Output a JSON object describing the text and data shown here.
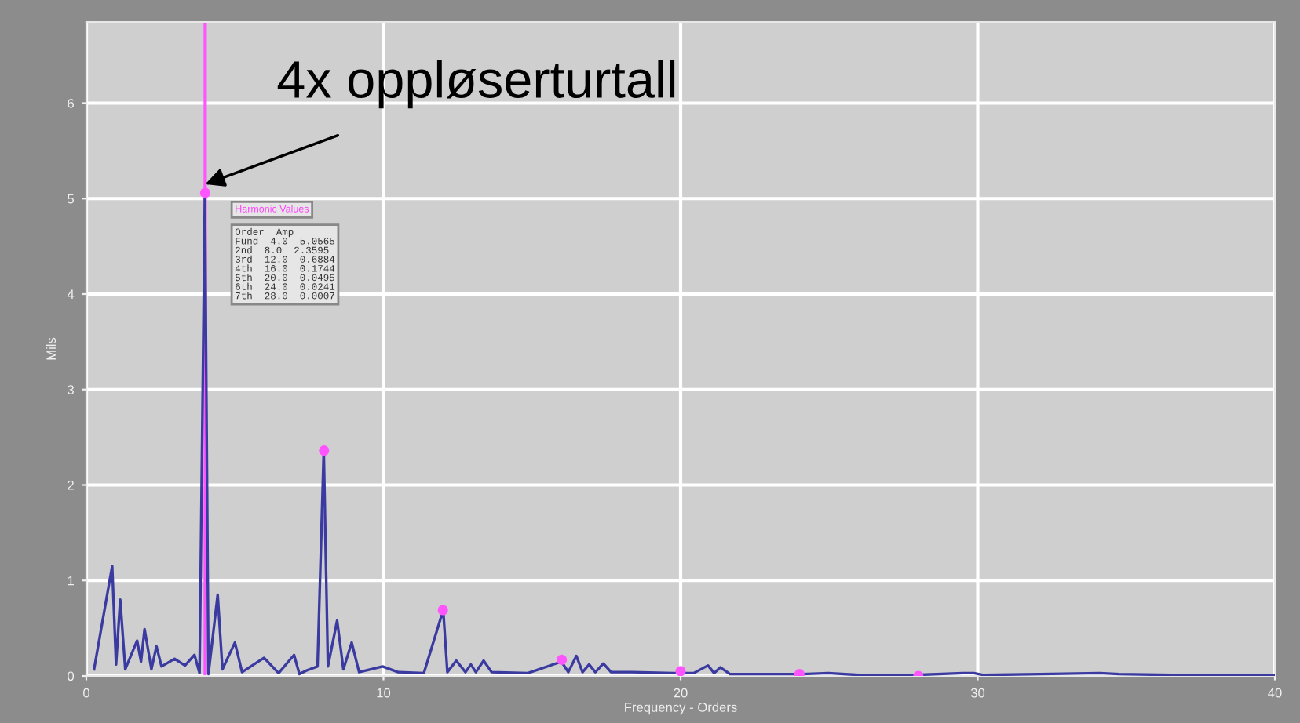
{
  "chart_data": {
    "type": "line",
    "xlabel": "Frequency - Orders",
    "ylabel": "Mils",
    "xlim": [
      0,
      40
    ],
    "xticks": [
      0,
      10,
      20,
      30,
      40
    ],
    "ylim": [
      0,
      6.85
    ],
    "yticks": [
      0,
      1,
      2,
      3,
      4,
      5,
      6
    ],
    "grid": true,
    "legend": false,
    "series": [
      {
        "color": "#3a3aa0",
        "x": [
          0.26,
          0.87,
          1.0,
          1.14,
          1.31,
          1.71,
          1.84,
          1.96,
          2.19,
          2.36,
          2.53,
          2.97,
          3.32,
          3.64,
          3.81,
          3.99,
          4.11,
          4.42,
          4.58,
          5.0,
          5.24,
          5.98,
          6.47,
          6.99,
          7.17,
          7.43,
          7.78,
          7.99,
          8.13,
          8.44,
          8.65,
          8.93,
          9.18,
          9.97,
          10.49,
          11.36,
          12.01,
          12.15,
          12.45,
          12.76,
          12.94,
          13.11,
          13.37,
          13.64,
          14.86,
          15.99,
          16.22,
          16.49,
          16.7,
          16.92,
          17.13,
          17.4,
          17.66,
          18.36,
          19.76,
          20.44,
          20.92,
          21.13,
          21.34,
          21.66,
          22.5,
          24.1,
          24.97,
          26.0,
          27.9,
          29.5,
          29.87,
          30.2,
          32.1,
          34.1,
          34.76,
          36.5,
          40.0
        ],
        "values": [
          0.07,
          1.15,
          0.12,
          0.8,
          0.07,
          0.37,
          0.15,
          0.49,
          0.07,
          0.31,
          0.1,
          0.18,
          0.11,
          0.22,
          0.03,
          5.06,
          0.02,
          0.85,
          0.07,
          0.35,
          0.04,
          0.19,
          0.03,
          0.22,
          0.02,
          0.06,
          0.1,
          2.36,
          0.1,
          0.58,
          0.07,
          0.35,
          0.04,
          0.1,
          0.04,
          0.03,
          0.69,
          0.04,
          0.16,
          0.04,
          0.12,
          0.04,
          0.16,
          0.04,
          0.03,
          0.15,
          0.04,
          0.21,
          0.04,
          0.12,
          0.04,
          0.13,
          0.04,
          0.04,
          0.03,
          0.03,
          0.11,
          0.03,
          0.09,
          0.02,
          0.02,
          0.02,
          0.03,
          0.01,
          0.01,
          0.03,
          0.03,
          0.01,
          0.02,
          0.03,
          0.02,
          0.01,
          0.01
        ]
      },
      {
        "type": "scatter",
        "color": "#ff55ff",
        "marker": "circle",
        "x": [
          4,
          8,
          12,
          16,
          20,
          24,
          28
        ],
        "values": [
          5.06,
          2.36,
          0.69,
          0.17,
          0.05,
          0.02,
          0.0
        ]
      }
    ],
    "ref_lines": [
      {
        "axis": "x",
        "value": 4,
        "color": "#ff55ff",
        "line_style": "solid"
      }
    ],
    "annotations": [
      {
        "text": "4x oppløserturtall",
        "x": 4,
        "y": 5.15
      },
      "Harmonic Values",
      "Order  Amp",
      "Fund  4.0  5.0565",
      "2nd  8.0  2.3595",
      "3rd  12.0  0.6884",
      "4th  16.0  0.1744",
      "5th  20.0  0.0495",
      "6th  24.0  0.0241",
      "7th  28.0  0.0007"
    ]
  }
}
